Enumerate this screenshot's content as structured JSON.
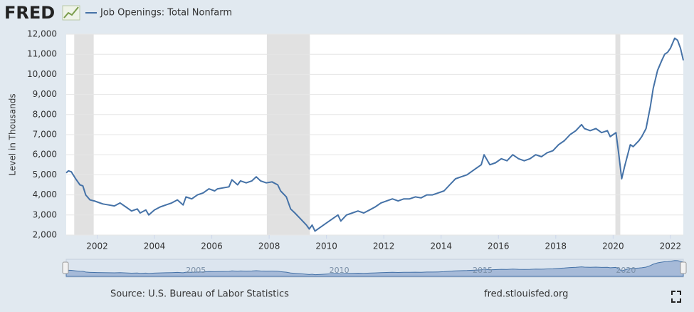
{
  "chart_data": {
    "type": "line",
    "logo": "FRED",
    "ylabel": "Level in Thousands",
    "source": "Source: U.S. Bureau of Labor Statistics",
    "site": "fred.stlouisfed.org",
    "xlim": [
      2000.92,
      2022.45
    ],
    "ylim": [
      2000,
      12000
    ],
    "xticks": [
      2002,
      2004,
      2006,
      2008,
      2010,
      2012,
      2014,
      2016,
      2018,
      2020,
      2022
    ],
    "yticks": [
      {
        "value": 2000,
        "label": "2,000"
      },
      {
        "value": 3000,
        "label": "3,000"
      },
      {
        "value": 4000,
        "label": "4,000"
      },
      {
        "value": 5000,
        "label": "5,000"
      },
      {
        "value": 6000,
        "label": "6,000"
      },
      {
        "value": 7000,
        "label": "7,000"
      },
      {
        "value": 8000,
        "label": "8,000"
      },
      {
        "value": 9000,
        "label": "9,000"
      },
      {
        "value": 10000,
        "label": "10,000"
      },
      {
        "value": 11000,
        "label": "11,000"
      },
      {
        "value": 12000,
        "label": "12,000"
      }
    ],
    "navigator_ticks": [
      2005,
      2010,
      2015,
      2020
    ],
    "grid": true,
    "recessions": [
      [
        2001.2,
        2001.88
      ],
      [
        2007.92,
        2009.42
      ],
      [
        2020.08,
        2020.25
      ]
    ],
    "x": [
      2000.92,
      2001.0,
      2001.1,
      2001.25,
      2001.4,
      2001.5,
      2001.6,
      2001.75,
      2001.9,
      2002.0,
      2002.2,
      2002.4,
      2002.6,
      2002.8,
      2003.0,
      2003.2,
      2003.4,
      2003.5,
      2003.7,
      2003.8,
      2004.0,
      2004.2,
      2004.4,
      2004.6,
      2004.8,
      2005.0,
      2005.1,
      2005.3,
      2005.5,
      2005.7,
      2005.9,
      2006.1,
      2006.2,
      2006.4,
      2006.6,
      2006.7,
      2006.9,
      2007.0,
      2007.2,
      2007.4,
      2007.55,
      2007.7,
      2007.9,
      2008.1,
      2008.3,
      2008.4,
      2008.6,
      2008.75,
      2008.9,
      2009.1,
      2009.3,
      2009.4,
      2009.5,
      2009.6,
      2009.8,
      2010.0,
      2010.2,
      2010.4,
      2010.5,
      2010.7,
      2010.9,
      2011.1,
      2011.3,
      2011.5,
      2011.7,
      2011.9,
      2012.1,
      2012.3,
      2012.5,
      2012.7,
      2012.9,
      2013.1,
      2013.3,
      2013.5,
      2013.7,
      2013.9,
      2014.1,
      2014.3,
      2014.5,
      2014.7,
      2014.9,
      2015.1,
      2015.2,
      2015.4,
      2015.5,
      2015.7,
      2015.9,
      2016.1,
      2016.3,
      2016.5,
      2016.7,
      2016.9,
      2017.1,
      2017.3,
      2017.5,
      2017.7,
      2017.9,
      2018.1,
      2018.3,
      2018.5,
      2018.7,
      2018.9,
      2019.0,
      2019.2,
      2019.4,
      2019.6,
      2019.8,
      2019.9,
      2020.0,
      2020.1,
      2020.2,
      2020.3,
      2020.4,
      2020.6,
      2020.7,
      2020.9,
      2021.0,
      2021.15,
      2021.3,
      2021.4,
      2021.55,
      2021.7,
      2021.8,
      2021.9,
      2022.0,
      2022.15,
      2022.25,
      2022.35,
      2022.45
    ],
    "series": [
      {
        "name": "Job Openings: Total Nonfarm",
        "color": "#4572a7",
        "values": [
          5100,
          5200,
          5150,
          4800,
          4500,
          4450,
          4000,
          3750,
          3700,
          3650,
          3550,
          3500,
          3450,
          3600,
          3400,
          3200,
          3300,
          3100,
          3250,
          3000,
          3250,
          3400,
          3500,
          3600,
          3750,
          3500,
          3900,
          3800,
          4000,
          4100,
          4300,
          4200,
          4300,
          4350,
          4400,
          4750,
          4500,
          4700,
          4600,
          4700,
          4900,
          4700,
          4600,
          4650,
          4500,
          4200,
          3900,
          3300,
          3100,
          2800,
          2500,
          2300,
          2500,
          2200,
          2400,
          2600,
          2800,
          3000,
          2700,
          3000,
          3100,
          3200,
          3100,
          3250,
          3400,
          3600,
          3700,
          3800,
          3700,
          3800,
          3800,
          3900,
          3850,
          4000,
          4000,
          4100,
          4200,
          4500,
          4800,
          4900,
          5000,
          5200,
          5300,
          5500,
          6000,
          5500,
          5600,
          5800,
          5700,
          6000,
          5800,
          5700,
          5800,
          6000,
          5900,
          6100,
          6200,
          6500,
          6700,
          7000,
          7200,
          7500,
          7300,
          7200,
          7300,
          7100,
          7200,
          6900,
          7000,
          7100,
          6000,
          4800,
          5400,
          6500,
          6400,
          6700,
          6900,
          7300,
          8400,
          9300,
          10200,
          10700,
          11000,
          11100,
          11300,
          11800,
          11700,
          11300,
          10700
        ]
      }
    ]
  }
}
